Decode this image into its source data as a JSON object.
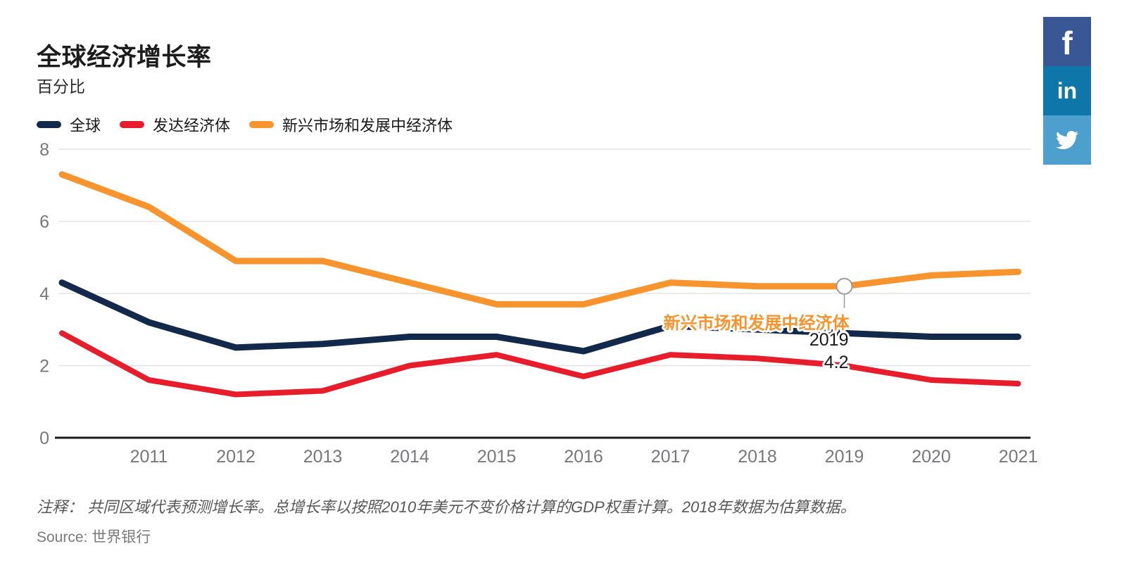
{
  "page": {
    "title": "全球经济增长率",
    "subtitle": "百分比"
  },
  "legend": {
    "items": [
      {
        "label": "全球"
      },
      {
        "label": "发达经济体"
      },
      {
        "label": "新兴市场和发展中经济体"
      }
    ]
  },
  "chart_data": {
    "type": "line",
    "x": [
      2010,
      2011,
      2012,
      2013,
      2014,
      2015,
      2016,
      2017,
      2018,
      2019,
      2020,
      2021
    ],
    "series": [
      {
        "name": "全球",
        "color": "#12294b",
        "values": [
          4.3,
          3.2,
          2.5,
          2.6,
          2.8,
          2.8,
          2.4,
          3.1,
          3.0,
          2.9,
          2.8,
          2.8
        ]
      },
      {
        "name": "发达经济体",
        "color": "#e81d2c",
        "values": [
          2.9,
          1.6,
          1.2,
          1.3,
          2.0,
          2.3,
          1.7,
          2.3,
          2.2,
          2.0,
          1.6,
          1.5
        ]
      },
      {
        "name": "新兴市场和发展中经济体",
        "color": "#f7942d",
        "values": [
          7.3,
          6.4,
          4.9,
          4.9,
          4.3,
          3.7,
          3.7,
          4.3,
          4.2,
          4.2,
          4.5,
          4.6
        ]
      }
    ],
    "title": "全球经济增长率",
    "ylabel": "百分比",
    "ylim": [
      0,
      8
    ],
    "yticks": [
      0,
      2,
      4,
      6,
      8
    ],
    "xticks": [
      "2011",
      "2012",
      "2013",
      "2014",
      "2015",
      "2016",
      "2017",
      "2018",
      "2019",
      "2020",
      "2021"
    ],
    "grid": true,
    "legend_position": "top-left",
    "tooltip": {
      "series": "新兴市场和发展中经济体",
      "year": "2019",
      "value": "4.2",
      "year_num": 2019,
      "value_num": 4.2
    }
  },
  "colors": {
    "grid": "#e4e4e4",
    "axis": "#1a1a1a",
    "tick_label": "#77787b",
    "marker_stroke": "#9b9b9b",
    "tooltip_text": "#1a1a1a"
  },
  "social": {
    "items": [
      {
        "name": "facebook",
        "glyph": "f",
        "color": "#3a5795"
      },
      {
        "name": "linkedin",
        "glyph": "in",
        "color": "#0e76a8"
      },
      {
        "name": "twitter",
        "glyph": "",
        "color": "#4d9fce"
      }
    ]
  },
  "notes": {
    "note": "注释： 共同区域代表预测增长率。总增长率以按照2010年美元不变价格计算的GDP权重计算。2018年数据为估算数据。",
    "source_label": "Source:",
    "source": "世界银行"
  }
}
